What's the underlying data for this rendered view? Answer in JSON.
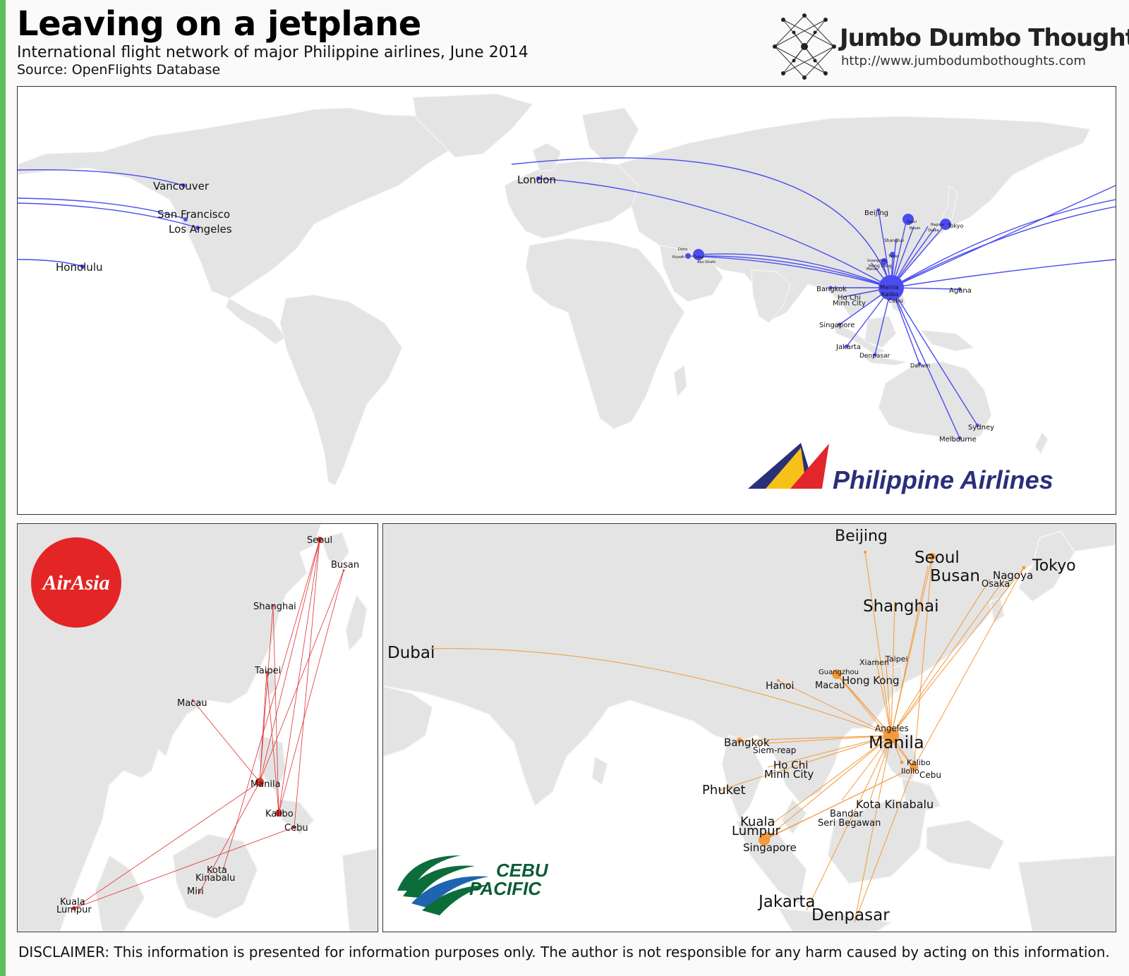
{
  "header": {
    "title": "Leaving on a jetplane",
    "subtitle": "International flight network of major Philippine airlines, June 2014",
    "source": "Source: OpenFlights Database"
  },
  "brand": {
    "name": "Jumbo Dumbo Thoughts",
    "url": "http://www.jumbodumbothoughts.com"
  },
  "colors": {
    "land": "#e4e4e4",
    "pal_route": "#4a4cf0",
    "airasia_route": "#e03030",
    "cebu_route": "#f39a3a"
  },
  "panels": {
    "philippine_airlines": {
      "logo_text": "Philippine Airlines",
      "hub": "Manila",
      "labels": [
        {
          "id": "vancouver",
          "text": "Vancouver"
        },
        {
          "id": "sanfrancisco",
          "text": "San Francisco"
        },
        {
          "id": "losangeles",
          "text": "Los Angeles"
        },
        {
          "id": "honolulu",
          "text": "Honolulu"
        },
        {
          "id": "london",
          "text": "London"
        },
        {
          "id": "beijing",
          "text": "Beijing"
        },
        {
          "id": "tokyo",
          "text": "Tokyo"
        },
        {
          "id": "manila",
          "text": "Manila"
        },
        {
          "id": "kalibo",
          "text": "Kalibo"
        },
        {
          "id": "cebu",
          "text": "Cebu"
        },
        {
          "id": "agana",
          "text": "Agana"
        },
        {
          "id": "bangkok",
          "text": "Bangkok"
        },
        {
          "id": "hochi",
          "text": "Ho Chi"
        },
        {
          "id": "minhcity",
          "text": "Minh City"
        },
        {
          "id": "singapore",
          "text": "Singapore"
        },
        {
          "id": "jakarta",
          "text": "Jakarta"
        },
        {
          "id": "denpasar",
          "text": "Denpasar"
        },
        {
          "id": "darwin",
          "text": "Darwin"
        },
        {
          "id": "sydney",
          "text": "Sydney"
        },
        {
          "id": "melbourne",
          "text": "Melbourne"
        },
        {
          "id": "hongkong",
          "text": "Hong Kong"
        },
        {
          "id": "shanghai",
          "text": "Shanghai"
        },
        {
          "id": "seoul",
          "text": "Seoul"
        },
        {
          "id": "busan",
          "text": "Busan"
        },
        {
          "id": "nagoya",
          "text": "Nagoya"
        },
        {
          "id": "osaka",
          "text": "Osaka"
        },
        {
          "id": "taipei",
          "text": "Taipei"
        },
        {
          "id": "guangzhou",
          "text": "Guangzhou"
        },
        {
          "id": "macau",
          "text": "Macau"
        },
        {
          "id": "dubai",
          "text": "Dubai"
        },
        {
          "id": "riyadh",
          "text": "Riyadh"
        },
        {
          "id": "doha",
          "text": "Doha"
        },
        {
          "id": "abudhabi",
          "text": "Abu Dhabi"
        }
      ]
    },
    "airasia": {
      "logo_text": "AirAsia",
      "labels": [
        {
          "id": "seoul",
          "text": "Seoul"
        },
        {
          "id": "busan",
          "text": "Busan"
        },
        {
          "id": "shanghai",
          "text": "Shanghai"
        },
        {
          "id": "taipei",
          "text": "Taipei"
        },
        {
          "id": "macau",
          "text": "Macau"
        },
        {
          "id": "manila",
          "text": "Manila"
        },
        {
          "id": "kalibo",
          "text": "Kalibo"
        },
        {
          "id": "cebu",
          "text": "Cebu"
        },
        {
          "id": "kota",
          "text": "Kota"
        },
        {
          "id": "kinabalu",
          "text": "Kinabalu"
        },
        {
          "id": "miri",
          "text": "Miri"
        },
        {
          "id": "kuala",
          "text": "Kuala"
        },
        {
          "id": "lumpur",
          "text": "Lumpur"
        }
      ]
    },
    "cebu_pacific": {
      "logo_line1": "CEBU",
      "logo_line2": "PACIFIC",
      "labels": [
        {
          "id": "beijing",
          "text": "Beijing"
        },
        {
          "id": "seoul",
          "text": "Seoul"
        },
        {
          "id": "busan",
          "text": "Busan"
        },
        {
          "id": "tokyo",
          "text": "Tokyo"
        },
        {
          "id": "nagoya",
          "text": "Nagoya"
        },
        {
          "id": "osaka",
          "text": "Osaka"
        },
        {
          "id": "shanghai",
          "text": "Shanghai"
        },
        {
          "id": "dubai",
          "text": "Dubai"
        },
        {
          "id": "xiamen",
          "text": "Xiamen"
        },
        {
          "id": "taipei",
          "text": "Taipei"
        },
        {
          "id": "guangzhou",
          "text": "Guangzhou"
        },
        {
          "id": "hongkong",
          "text": "Hong Kong"
        },
        {
          "id": "macau",
          "text": "Macau"
        },
        {
          "id": "hanoi",
          "text": "Hanoi"
        },
        {
          "id": "angeles",
          "text": "Angeles"
        },
        {
          "id": "manila",
          "text": "Manila"
        },
        {
          "id": "bangkok",
          "text": "Bangkok"
        },
        {
          "id": "siemreap",
          "text": "Siem-reap"
        },
        {
          "id": "hochi",
          "text": "Ho Chi"
        },
        {
          "id": "minhcity",
          "text": "Minh City"
        },
        {
          "id": "kalibo",
          "text": "Kalibo"
        },
        {
          "id": "iloilo",
          "text": "Iloilo"
        },
        {
          "id": "cebu",
          "text": "Cebu"
        },
        {
          "id": "phuket",
          "text": "Phuket"
        },
        {
          "id": "kotakinabalu",
          "text": "Kota Kinabalu"
        },
        {
          "id": "bandar",
          "text": "Bandar"
        },
        {
          "id": "seribegawan",
          "text": "Seri Begawan"
        },
        {
          "id": "kuala",
          "text": "Kuala"
        },
        {
          "id": "lumpur",
          "text": "Lumpur"
        },
        {
          "id": "singapore",
          "text": "Singapore"
        },
        {
          "id": "jakarta",
          "text": "Jakarta"
        },
        {
          "id": "denpasar",
          "text": "Denpasar"
        }
      ]
    }
  },
  "disclaimer": "DISCLAIMER: This information is presented for information purposes only. The author is not responsible for any harm caused by acting on this information."
}
